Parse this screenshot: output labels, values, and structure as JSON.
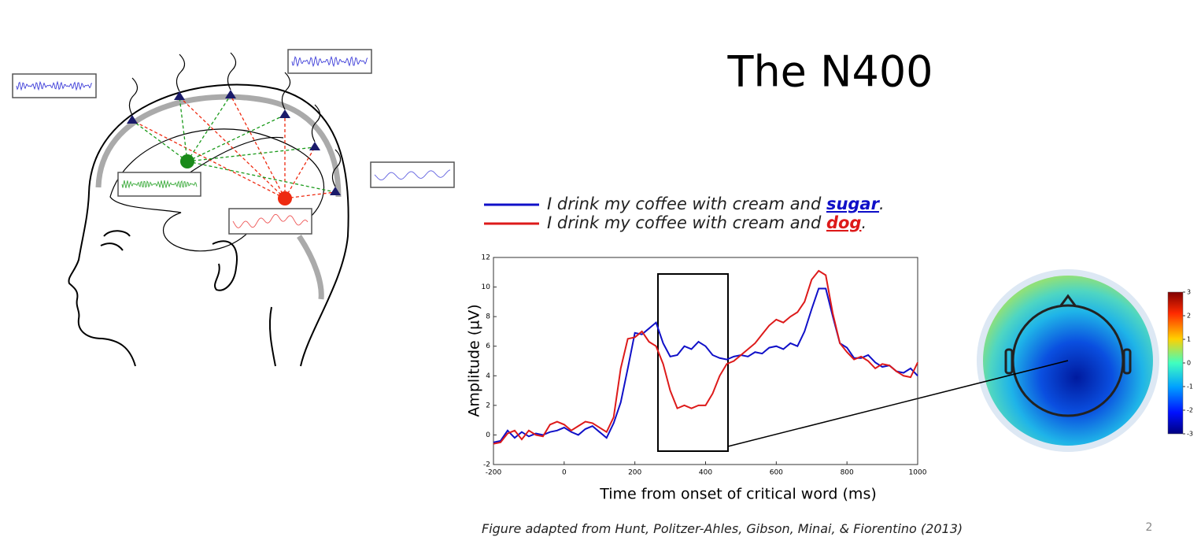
{
  "title": "The N400",
  "caption": "Figure adapted from Hunt, Politzer-Ahles, Gibson, Minai, & Fiorentino (2013)",
  "page_number": "2",
  "colorbar": {
    "lim": [
      -3,
      3
    ],
    "ticks": [
      3,
      2,
      1,
      0,
      -1,
      -2,
      -3
    ]
  },
  "chart_data": {
    "type": "line",
    "xlabel": "Time from onset of critical word (ms)",
    "ylabel": "Amplitude (µV)",
    "xlim": [
      -200,
      1000
    ],
    "xticks": [
      -200,
      0,
      200,
      400,
      600,
      800,
      1000
    ],
    "ylim": [
      -2,
      12
    ],
    "yticks": [
      -2,
      0,
      2,
      4,
      6,
      8,
      10,
      12
    ],
    "x": [
      -200,
      -180,
      -160,
      -140,
      -120,
      -100,
      -80,
      -60,
      -40,
      -20,
      0,
      20,
      40,
      60,
      80,
      100,
      120,
      140,
      160,
      180,
      200,
      220,
      240,
      260,
      280,
      300,
      320,
      340,
      360,
      380,
      400,
      420,
      440,
      460,
      480,
      500,
      520,
      540,
      560,
      580,
      600,
      620,
      640,
      660,
      680,
      700,
      720,
      740,
      760,
      780,
      800,
      820,
      840,
      860,
      880,
      900,
      920,
      940,
      960,
      980,
      1000
    ],
    "series": [
      {
        "name": "I drink my coffee with cream and sugar.",
        "color": "#1010c8",
        "values": [
          -0.5,
          -0.4,
          0.3,
          -0.2,
          0.2,
          -0.1,
          0.1,
          0.0,
          0.2,
          0.3,
          0.5,
          0.2,
          0.0,
          0.4,
          0.6,
          0.2,
          -0.2,
          0.8,
          2.2,
          4.5,
          6.9,
          6.8,
          7.2,
          7.6,
          6.2,
          5.3,
          5.4,
          6.0,
          5.8,
          6.3,
          6.0,
          5.4,
          5.2,
          5.1,
          5.3,
          5.4,
          5.3,
          5.6,
          5.5,
          5.9,
          6.0,
          5.8,
          6.2,
          6.0,
          7.0,
          8.5,
          9.9,
          9.9,
          8.0,
          6.2,
          5.9,
          5.2,
          5.2,
          5.4,
          4.9,
          4.6,
          4.7,
          4.3,
          4.2,
          4.5,
          4.0
        ]
      },
      {
        "name": "I drink my coffee with cream and dog.",
        "color": "#dd1a1a",
        "values": [
          -0.6,
          -0.5,
          0.1,
          0.3,
          -0.3,
          0.3,
          0.0,
          -0.1,
          0.7,
          0.9,
          0.7,
          0.3,
          0.6,
          0.9,
          0.8,
          0.5,
          0.2,
          1.2,
          4.5,
          6.5,
          6.6,
          7.0,
          6.3,
          6.0,
          4.8,
          3.0,
          1.8,
          2.0,
          1.8,
          2.0,
          2.0,
          2.8,
          4.0,
          4.8,
          5.0,
          5.4,
          5.8,
          6.2,
          6.8,
          7.4,
          7.8,
          7.6,
          8.0,
          8.3,
          9.0,
          10.5,
          11.1,
          10.8,
          8.2,
          6.2,
          5.6,
          5.1,
          5.3,
          5.0,
          4.5,
          4.8,
          4.7,
          4.3,
          4.0,
          3.9,
          4.9
        ]
      }
    ]
  }
}
